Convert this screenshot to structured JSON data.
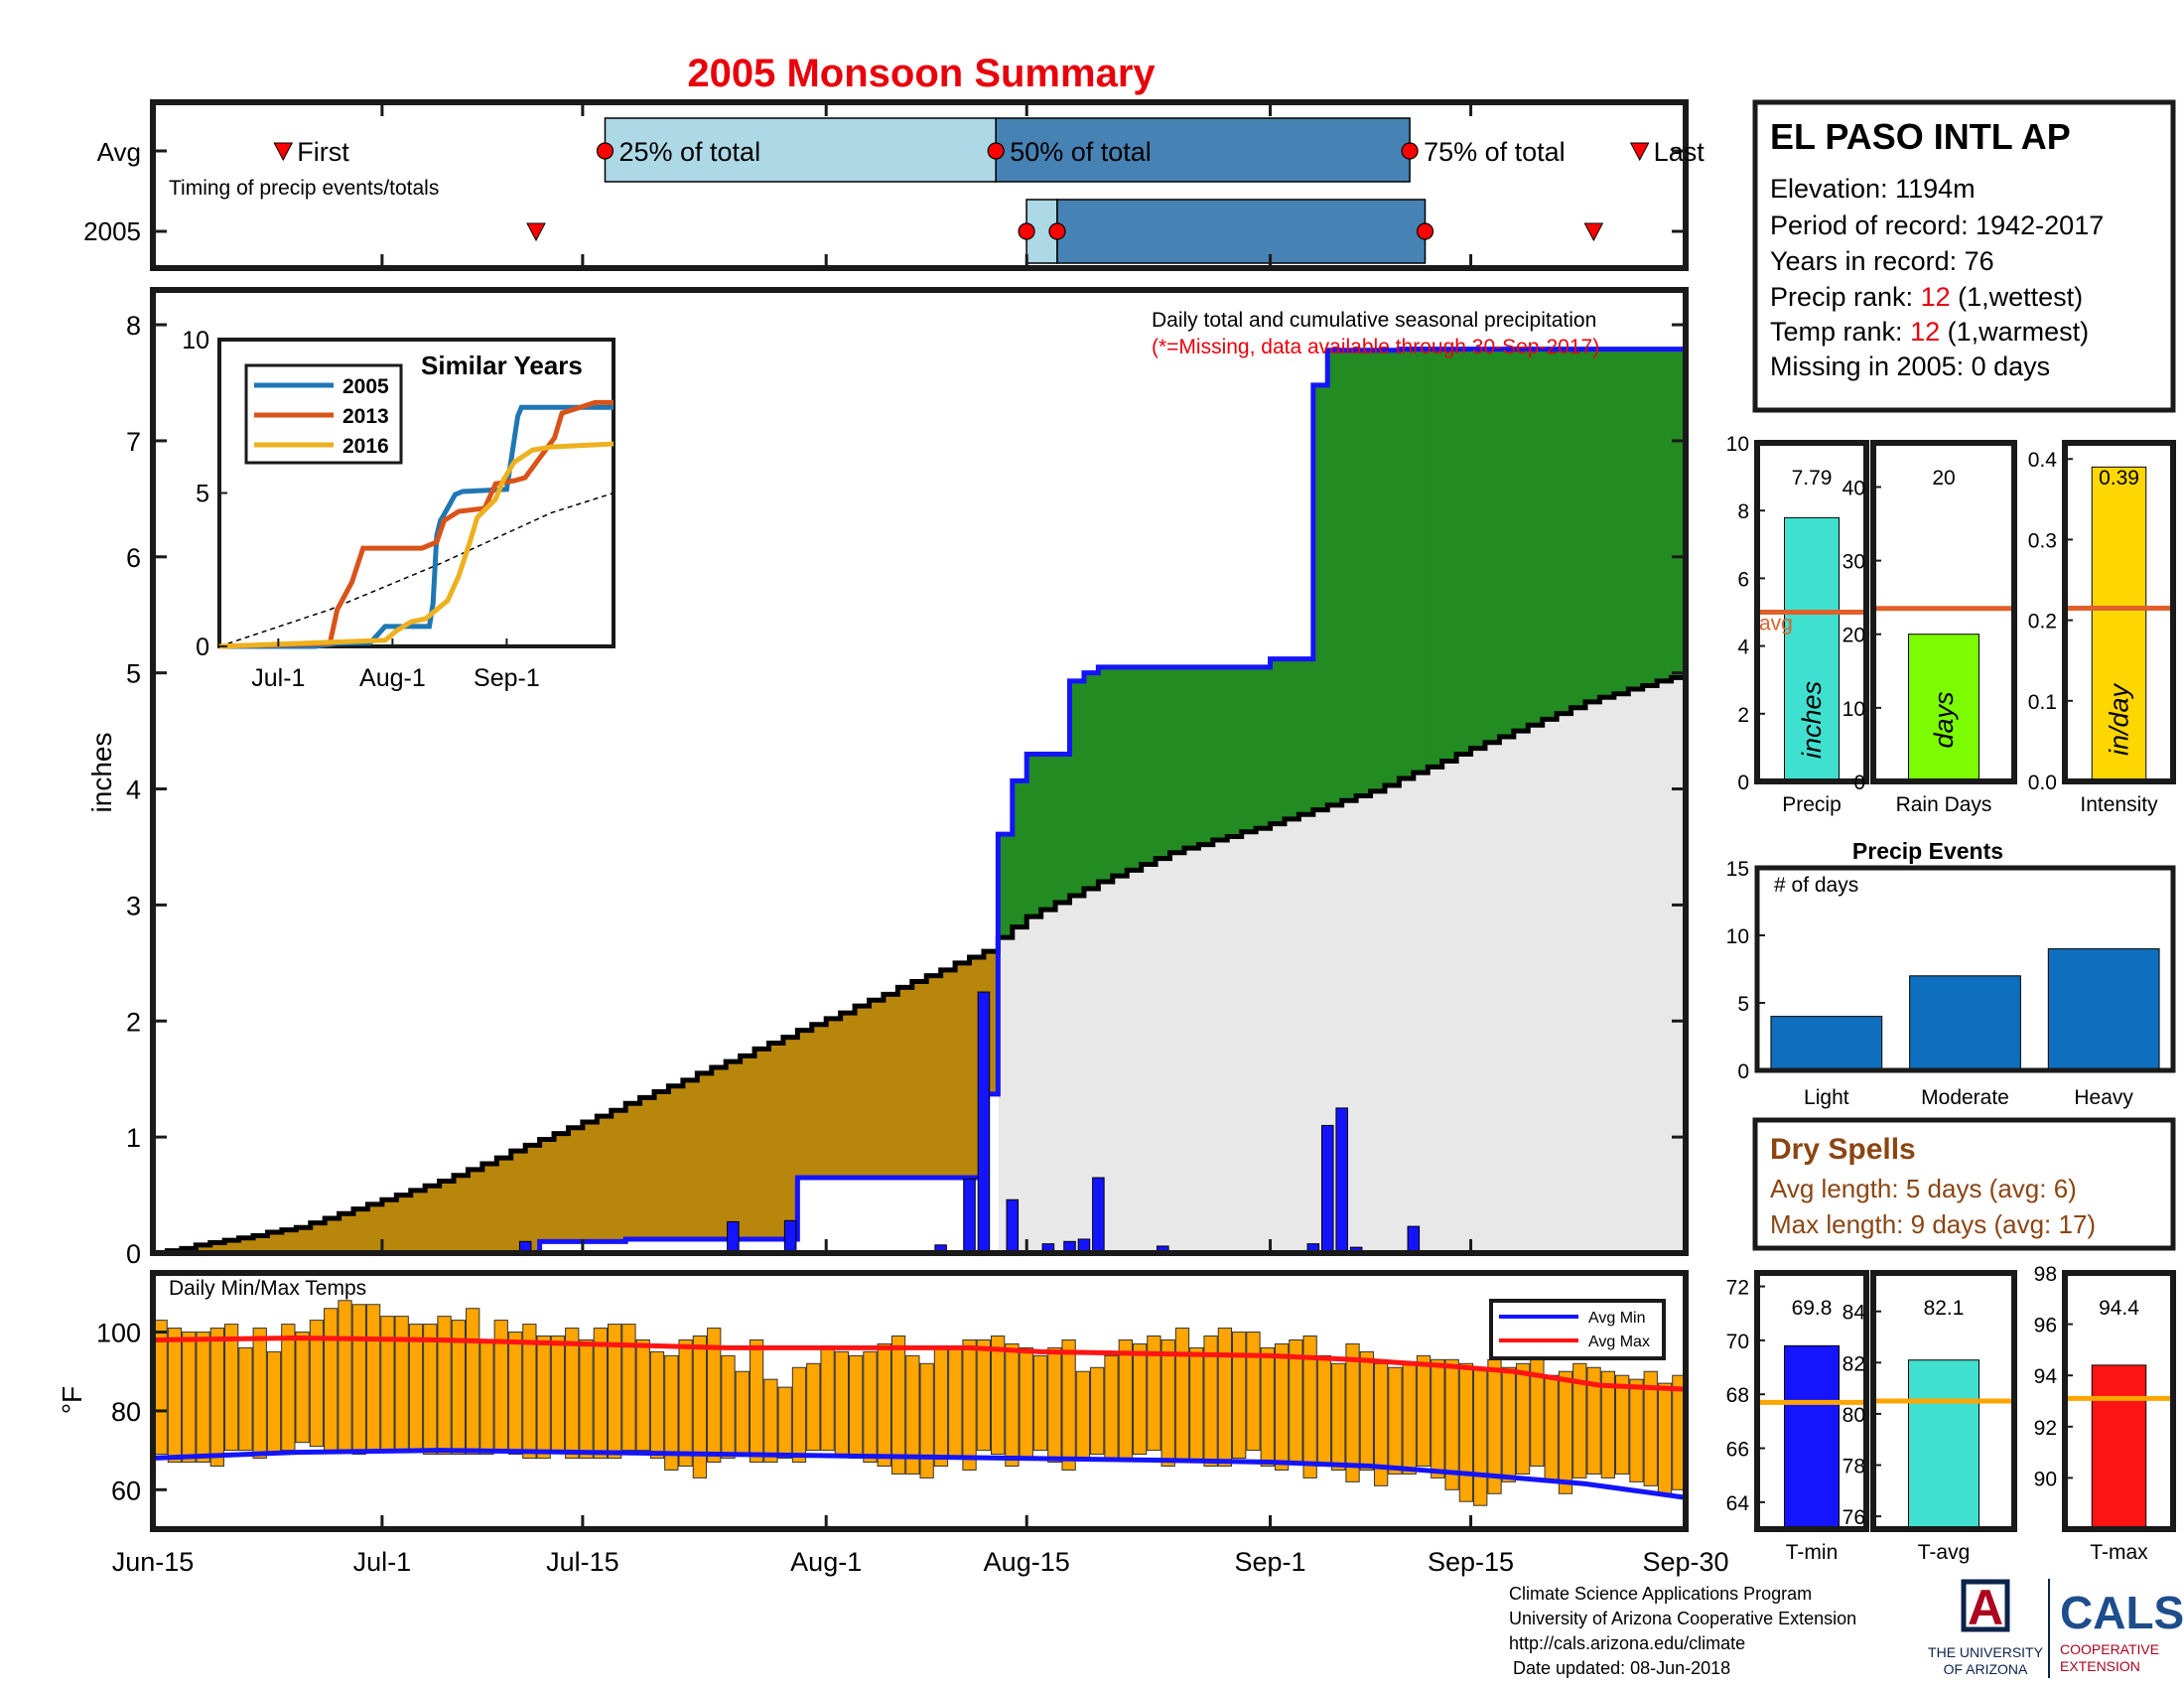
{
  "title": "2005 Monsoon Summary",
  "colors": {
    "title": "#e8000b",
    "obs_fill": "#228b22",
    "deficit_fill": "#b8860b",
    "normal_fill": "#e8e8e8",
    "observed_line": "#1414ff",
    "daily_bar": "#1414ff",
    "temp_bar": "#ffa500",
    "avg_min": "#1414ff",
    "avg_max": "#ff1414",
    "light_blue": "#add8e6",
    "steel_blue": "#4682b4",
    "marker_red": "#ff0000",
    "avg_line": "#e0602a",
    "dry_spell": "#8b4513"
  },
  "timing": {
    "row_labels": [
      "Avg",
      "2005"
    ],
    "note": "Timing of precip events/totals",
    "labels": {
      "first": "First",
      "q25": "25% of total",
      "q50": "50% of total",
      "q75": "75% of total",
      "last": "Last"
    },
    "avg": {
      "first": 8.5,
      "q25": 29.5,
      "q50": 55,
      "q75": 82,
      "last": 97
    },
    "y2005": {
      "first": 25,
      "q25": 57,
      "q50": 59,
      "q75": 83,
      "last": 94
    }
  },
  "station": {
    "name": "EL PASO INTL AP",
    "elevation": "Elevation: 1194m",
    "period": "Period of record: 1942-2017",
    "years": "Years in record: 76",
    "precip_rank_prefix": "Precip rank: ",
    "precip_rank": "12",
    "precip_rank_suffix": " (1,wettest)",
    "temp_rank_prefix": "Temp rank: ",
    "temp_rank": "12",
    "temp_rank_suffix": " (1,warmest)",
    "missing": "Missing in 2005: 0 days"
  },
  "chart_data": [
    {
      "type": "area",
      "name": "main",
      "title": "Daily total and cumulative seasonal precipitation",
      "subtitle": "(*=Missing, data available through 30-Sep-2017)",
      "ylabel": "inches",
      "ylim": [
        0,
        8.3
      ],
      "yticks": [
        0,
        1,
        2,
        3,
        4,
        5,
        6,
        7,
        8
      ],
      "xlim": [
        0,
        107
      ],
      "xticks": [
        {
          "label": "Jun-15",
          "day": 0
        },
        {
          "label": "Jul-1",
          "day": 16
        },
        {
          "label": "Jul-15",
          "day": 30
        },
        {
          "label": "Aug-1",
          "day": 47
        },
        {
          "label": "Aug-15",
          "day": 61
        },
        {
          "label": "Sep-1",
          "day": 78
        },
        {
          "label": "Sep-15",
          "day": 92
        },
        {
          "label": "Sep-30",
          "day": 107
        }
      ],
      "normal_cumulative": {
        "days": [
          0,
          10,
          20,
          30,
          40,
          50,
          58,
          59,
          61,
          66,
          71,
          78,
          85,
          92,
          100,
          107
        ],
        "values": [
          0,
          0.22,
          0.62,
          1.13,
          1.65,
          2.18,
          2.6,
          2.72,
          2.9,
          3.2,
          3.45,
          3.7,
          3.98,
          4.35,
          4.75,
          5.0
        ]
      },
      "observed_cumulative": {
        "days": [
          0,
          26,
          27,
          32,
          33,
          41,
          45,
          57,
          58,
          59,
          60,
          61,
          64,
          65,
          66,
          78,
          81,
          82,
          83,
          87,
          107
        ],
        "values": [
          0,
          0,
          0.1,
          0.1,
          0.12,
          0.12,
          0.65,
          0.65,
          1.37,
          3.61,
          4.07,
          4.3,
          4.93,
          5.0,
          5.05,
          5.12,
          7.48,
          7.78,
          7.78,
          7.79,
          7.79
        ]
      },
      "daily": [
        {
          "day": 26,
          "value": 0.1
        },
        {
          "day": 40.5,
          "value": 0.27
        },
        {
          "day": 44.5,
          "value": 0.28
        },
        {
          "day": 55,
          "value": 0.07
        },
        {
          "day": 57,
          "value": 0.64
        },
        {
          "day": 58,
          "value": 2.25
        },
        {
          "day": 60,
          "value": 0.46
        },
        {
          "day": 62.5,
          "value": 0.08
        },
        {
          "day": 64,
          "value": 0.1
        },
        {
          "day": 65,
          "value": 0.12
        },
        {
          "day": 66,
          "value": 0.65
        },
        {
          "day": 70.5,
          "value": 0.06
        },
        {
          "day": 81,
          "value": 0.08
        },
        {
          "day": 82,
          "value": 1.1
        },
        {
          "day": 83,
          "value": 1.25
        },
        {
          "day": 84,
          "value": 0.05
        },
        {
          "day": 88,
          "value": 0.23
        }
      ]
    },
    {
      "type": "line",
      "name": "similar_years_inset",
      "title": "Similar Years",
      "ylim": [
        0,
        10
      ],
      "yticks": [
        0,
        5,
        10
      ],
      "xlim": [
        0,
        107
      ],
      "xticks": [
        {
          "label": "Jul-1",
          "day": 16
        },
        {
          "label": "Aug-1",
          "day": 47
        },
        {
          "label": "Sep-1",
          "day": 78
        }
      ],
      "series": [
        {
          "name": "2005",
          "color": "#1f77b4",
          "days": [
            0,
            26,
            32,
            41,
            45,
            57,
            58,
            59,
            60,
            61,
            64,
            66,
            78,
            81,
            82,
            107
          ],
          "values": [
            0,
            0,
            0.1,
            0.12,
            0.65,
            0.65,
            1.4,
            3.61,
            4.1,
            4.3,
            4.95,
            5.05,
            5.12,
            7.5,
            7.79,
            7.79
          ]
        },
        {
          "name": "2013",
          "color": "#d95319",
          "days": [
            0,
            30,
            32,
            36,
            39,
            55,
            59,
            61,
            65,
            72,
            75,
            80,
            83,
            91,
            93,
            102,
            107
          ],
          "values": [
            0,
            0.1,
            1.2,
            2.1,
            3.2,
            3.2,
            3.4,
            4.1,
            4.4,
            4.5,
            5.3,
            5.4,
            5.5,
            6.8,
            7.6,
            7.95,
            7.95
          ]
        },
        {
          "name": "2016",
          "color": "#edb120",
          "days": [
            0,
            45,
            48,
            52,
            56,
            62,
            65,
            68,
            70,
            75,
            77,
            80,
            85,
            90,
            107
          ],
          "values": [
            0,
            0.2,
            0.5,
            0.8,
            0.9,
            1.5,
            2.3,
            3.4,
            4.2,
            4.8,
            5.4,
            6.0,
            6.4,
            6.5,
            6.6
          ]
        }
      ],
      "normal": {
        "days": [
          0,
          30,
          60,
          90,
          107
        ],
        "values": [
          0,
          1.2,
          2.7,
          4.35,
          5.0
        ]
      }
    },
    {
      "type": "bar",
      "name": "daily_temps",
      "title": "Daily Min/Max Temps",
      "ylabel": "°F",
      "ylim": [
        50,
        115
      ],
      "yticks": [
        60,
        80,
        100
      ],
      "legend": [
        "Avg Min",
        "Avg Max"
      ],
      "tmax": [
        103,
        101,
        100,
        100,
        101,
        102,
        96,
        101,
        95,
        102,
        100,
        103,
        106,
        108,
        107,
        107,
        104,
        104,
        102,
        102,
        104,
        103,
        106,
        98,
        103,
        100,
        102,
        99,
        99,
        101,
        98,
        101,
        102,
        102,
        98,
        95,
        94,
        98,
        99,
        101,
        94,
        90,
        98,
        88,
        86,
        91,
        92,
        96,
        95,
        94,
        95,
        97,
        99,
        94,
        92,
        96,
        96,
        98,
        98,
        99,
        97,
        96,
        94,
        96,
        98,
        90,
        91,
        94,
        98,
        97,
        99,
        98,
        101,
        96,
        99,
        101,
        100,
        100,
        96,
        97,
        98,
        99,
        94,
        92,
        97,
        95,
        92,
        91,
        92,
        94,
        93,
        93,
        92,
        91,
        93,
        91,
        92,
        93,
        89,
        90,
        92,
        91,
        90,
        89,
        88,
        90,
        87,
        89
      ],
      "tmin": [
        69,
        67,
        67,
        67,
        66,
        70,
        70,
        68,
        69,
        70,
        72,
        71,
        70,
        70,
        69,
        70,
        70,
        70,
        70,
        69,
        69,
        69,
        69,
        69,
        70,
        69,
        68,
        68,
        70,
        68,
        68,
        68,
        68,
        70,
        70,
        68,
        65,
        66,
        63,
        67,
        68,
        69,
        67,
        67,
        68,
        67,
        70,
        70,
        69,
        68,
        67,
        66,
        64,
        64,
        63,
        66,
        68,
        65,
        70,
        69,
        66,
        68,
        70,
        67,
        65,
        68,
        69,
        68,
        68,
        69,
        70,
        66,
        67,
        67,
        66,
        66,
        68,
        70,
        66,
        65,
        67,
        63,
        66,
        65,
        62,
        65,
        61,
        64,
        64,
        66,
        63,
        60,
        57,
        56,
        59,
        62,
        64,
        66,
        62,
        59,
        63,
        64,
        63,
        64,
        62,
        61,
        59,
        60
      ],
      "avg_max": {
        "days": [
          0,
          10,
          20,
          30,
          40,
          50,
          57,
          62,
          70,
          78,
          84,
          90,
          95,
          101,
          107
        ],
        "values": [
          98,
          98.5,
          98,
          97,
          96,
          96,
          96,
          95,
          94.5,
          94,
          93,
          91.5,
          90,
          86.5,
          85.5
        ]
      },
      "avg_min": {
        "days": [
          0,
          10,
          20,
          30,
          40,
          50,
          60,
          70,
          78,
          85,
          92,
          100,
          107
        ],
        "values": [
          68,
          69.5,
          70,
          69.5,
          69,
          68.5,
          68,
          67.5,
          67,
          66,
          64,
          61.5,
          58
        ]
      }
    },
    {
      "type": "bar",
      "name": "precip_total",
      "categories": [
        "Precip"
      ],
      "values": [
        7.79
      ],
      "value_label": "7.79",
      "avg": 5.0,
      "avg_label": "avg",
      "ylim": [
        0,
        10
      ],
      "yticks": [
        0,
        2,
        4,
        6,
        8,
        10
      ],
      "bar_text": "inches",
      "color": "#40e0d0"
    },
    {
      "type": "bar",
      "name": "rain_days",
      "categories": [
        "Rain Days"
      ],
      "values": [
        20
      ],
      "value_label": "20",
      "avg": 23.5,
      "ylim": [
        0,
        46
      ],
      "yticks": [
        0,
        10,
        20,
        30,
        40
      ],
      "bar_text": "days",
      "color": "#7cfc00"
    },
    {
      "type": "bar",
      "name": "intensity",
      "categories": [
        "Intensity"
      ],
      "values": [
        0.39
      ],
      "value_label": "0.39",
      "avg": 0.215,
      "ylim": [
        0,
        0.42
      ],
      "yticks": [
        0,
        0.1,
        0.2,
        0.3,
        0.4
      ],
      "bar_text": "in/day",
      "color": "#ffd700"
    },
    {
      "type": "bar",
      "name": "precip_events",
      "title": "Precip Events",
      "ylabel": "# of days",
      "categories": [
        "Light",
        "Moderate",
        "Heavy"
      ],
      "values": [
        4,
        7,
        9
      ],
      "ylim": [
        0,
        15
      ],
      "yticks": [
        0,
        5,
        10,
        15
      ],
      "color": "#0e6fbe"
    },
    {
      "type": "bar",
      "name": "t_min",
      "categories": [
        "T-min"
      ],
      "values": [
        69.8
      ],
      "value_label": "69.8",
      "avg": 67.7,
      "ylim": [
        63,
        72.5
      ],
      "yticks": [
        64,
        66,
        68,
        70,
        72
      ],
      "color": "#1414ff"
    },
    {
      "type": "bar",
      "name": "t_avg",
      "categories": [
        "T-avg"
      ],
      "values": [
        82.1
      ],
      "value_label": "82.1",
      "avg": 80.5,
      "ylim": [
        75.5,
        85.5
      ],
      "yticks": [
        76,
        78,
        80,
        82,
        84
      ],
      "color": "#40e0d0"
    },
    {
      "type": "bar",
      "name": "t_max",
      "categories": [
        "T-max"
      ],
      "values": [
        94.4
      ],
      "value_label": "94.4",
      "avg": 93.1,
      "ylim": [
        88,
        98
      ],
      "yticks": [
        90,
        92,
        94,
        96,
        98
      ],
      "color": "#ff1414"
    }
  ],
  "dry_spells": {
    "title": "Dry Spells",
    "avg_length": "Avg length: 5 days (avg: 6)",
    "max_length": "Max length: 9 days (avg: 17)"
  },
  "footer": {
    "line1": "Climate Science Applications Program",
    "line2": "University of Arizona Cooperative Extension",
    "line3": "http://cals.arizona.edu/climate",
    "line4": "Date updated: 08-Jun-2018"
  },
  "logos": {
    "ua_letter": "A",
    "ua_line1": "THE UNIVERSITY",
    "ua_line2": "OF ARIZONA",
    "cals": "CALS",
    "cals_line1": "COOPERATIVE",
    "cals_line2": "EXTENSION"
  }
}
